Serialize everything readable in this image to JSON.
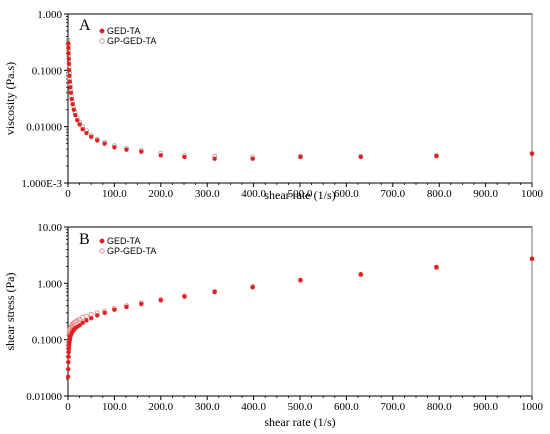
{
  "chart_data": [
    {
      "type": "scatter",
      "panel_label": "A",
      "xlabel": "shear rate (1/s)",
      "ylabel": "viscosity (Pa.s)",
      "x_scale": "linear",
      "y_scale": "log",
      "xlim": [
        0,
        1000
      ],
      "ylim": [
        0.001,
        1
      ],
      "x_ticks": [
        "0",
        "100.0",
        "200.0",
        "300.0",
        "400.0",
        "500.0",
        "600.0",
        "700.0",
        "800.0",
        "900.0",
        "1000"
      ],
      "y_ticks": [
        {
          "value": 0.001,
          "label": "1.000E-3"
        },
        {
          "value": 0.01,
          "label": "0.01000"
        },
        {
          "value": 0.1,
          "label": "0.1000"
        },
        {
          "value": 1,
          "label": "1.000"
        }
      ],
      "legend_position": "top-left",
      "series": [
        {
          "name": "GED-TA",
          "color": "#e41e1e",
          "marker": "filled-circle",
          "points": [
            [
              0.5,
              0.3
            ],
            [
              0.8,
              0.25
            ],
            [
              1.2,
              0.2
            ],
            [
              1.6,
              0.16
            ],
            [
              2.0,
              0.13
            ],
            [
              2.5,
              0.1
            ],
            [
              3.2,
              0.08
            ],
            [
              4.0,
              0.063
            ],
            [
              5.0,
              0.05
            ],
            [
              6.3,
              0.04
            ],
            [
              8.0,
              0.031
            ],
            [
              10,
              0.025
            ],
            [
              12.6,
              0.02
            ],
            [
              15.8,
              0.016
            ],
            [
              20,
              0.013
            ],
            [
              25,
              0.011
            ],
            [
              31.6,
              0.009
            ],
            [
              39.8,
              0.0077
            ],
            [
              50,
              0.0066
            ],
            [
              63,
              0.0057
            ],
            [
              79,
              0.005
            ],
            [
              100,
              0.0043
            ],
            [
              126,
              0.0039
            ],
            [
              158,
              0.0036
            ],
            [
              200,
              0.0031
            ],
            [
              251,
              0.0029
            ],
            [
              316,
              0.0027
            ],
            [
              398,
              0.0027
            ],
            [
              501,
              0.0029
            ],
            [
              631,
              0.0029
            ],
            [
              794,
              0.003
            ],
            [
              1000,
              0.0033
            ]
          ]
        },
        {
          "name": "GP-GED-TA",
          "color": "#aaaaaa",
          "marker": "open-circle",
          "points": [
            [
              0.5,
              0.35
            ],
            [
              0.8,
              0.28
            ],
            [
              1.2,
              0.22
            ],
            [
              1.6,
              0.18
            ],
            [
              2.0,
              0.14
            ],
            [
              2.5,
              0.11
            ],
            [
              3.2,
              0.09
            ],
            [
              4.0,
              0.07
            ],
            [
              5.0,
              0.055
            ],
            [
              6.3,
              0.044
            ],
            [
              8.0,
              0.035
            ],
            [
              10,
              0.028
            ],
            [
              12.6,
              0.022
            ],
            [
              15.8,
              0.018
            ],
            [
              20,
              0.014
            ],
            [
              25,
              0.012
            ],
            [
              31.6,
              0.01
            ],
            [
              39.8,
              0.0085
            ],
            [
              50,
              0.007
            ],
            [
              63,
              0.006
            ],
            [
              79,
              0.0053
            ],
            [
              100,
              0.0046
            ],
            [
              126,
              0.0041
            ],
            [
              158,
              0.0038
            ],
            [
              200,
              0.0034
            ],
            [
              251,
              0.0031
            ],
            [
              316,
              0.003
            ],
            [
              398,
              0.0029
            ],
            [
              501,
              0.003
            ],
            [
              631,
              0.003
            ],
            [
              794,
              0.0031
            ],
            [
              1000,
              0.0034
            ]
          ]
        }
      ]
    },
    {
      "type": "scatter",
      "panel_label": "B",
      "xlabel": "shear rate (1/s)",
      "ylabel": "shear stress (Pa)",
      "x_scale": "linear",
      "y_scale": "log",
      "xlim": [
        0,
        1000
      ],
      "ylim": [
        0.01,
        10
      ],
      "x_ticks": [
        "0",
        "100.0",
        "200.0",
        "300.0",
        "400.0",
        "500.0",
        "600.0",
        "700.0",
        "800.0",
        "900.0",
        "1000"
      ],
      "y_ticks": [
        {
          "value": 0.01,
          "label": "0.01000"
        },
        {
          "value": 0.1,
          "label": "0.1000"
        },
        {
          "value": 1,
          "label": "1.000"
        },
        {
          "value": 10,
          "label": "10.00"
        }
      ],
      "legend_position": "top-left",
      "series": [
        {
          "name": "GED-TA",
          "color": "#e41e1e",
          "marker": "filled-circle",
          "points": [
            [
              0.3,
              0.022
            ],
            [
              0.5,
              0.03
            ],
            [
              0.8,
              0.04
            ],
            [
              1.2,
              0.05
            ],
            [
              1.6,
              0.06
            ],
            [
              2.0,
              0.07
            ],
            [
              2.5,
              0.08
            ],
            [
              3.2,
              0.09
            ],
            [
              4.0,
              0.1
            ],
            [
              5.0,
              0.11
            ],
            [
              6.3,
              0.12
            ],
            [
              8.0,
              0.13
            ],
            [
              10,
              0.14
            ],
            [
              12.6,
              0.15
            ],
            [
              15.8,
              0.16
            ],
            [
              20,
              0.17
            ],
            [
              25,
              0.18
            ],
            [
              31.6,
              0.2
            ],
            [
              39.8,
              0.22
            ],
            [
              50,
              0.24
            ],
            [
              63,
              0.27
            ],
            [
              79,
              0.3
            ],
            [
              100,
              0.34
            ],
            [
              126,
              0.38
            ],
            [
              158,
              0.43
            ],
            [
              200,
              0.5
            ],
            [
              251,
              0.58
            ],
            [
              316,
              0.7
            ],
            [
              398,
              0.85
            ],
            [
              501,
              1.15
            ],
            [
              631,
              1.45
            ],
            [
              794,
              1.95
            ],
            [
              1000,
              2.75
            ]
          ]
        },
        {
          "name": "GP-GED-TA",
          "color": "#e88888",
          "marker": "open-circle",
          "points": [
            [
              0.5,
              0.05
            ],
            [
              0.8,
              0.07
            ],
            [
              1.2,
              0.09
            ],
            [
              1.6,
              0.1
            ],
            [
              2.0,
              0.12
            ],
            [
              2.5,
              0.13
            ],
            [
              3.2,
              0.14
            ],
            [
              4.0,
              0.15
            ],
            [
              5.0,
              0.16
            ],
            [
              6.3,
              0.17
            ],
            [
              8.0,
              0.18
            ],
            [
              10,
              0.19
            ],
            [
              12.6,
              0.2
            ],
            [
              15.8,
              0.21
            ],
            [
              20,
              0.22
            ],
            [
              25,
              0.23
            ],
            [
              31.6,
              0.25
            ],
            [
              39.8,
              0.26
            ],
            [
              50,
              0.28
            ],
            [
              63,
              0.3
            ],
            [
              79,
              0.32
            ],
            [
              100,
              0.36
            ],
            [
              126,
              0.4
            ],
            [
              158,
              0.45
            ],
            [
              200,
              0.52
            ],
            [
              251,
              0.6
            ],
            [
              316,
              0.72
            ],
            [
              398,
              0.88
            ],
            [
              501,
              1.12
            ],
            [
              631,
              1.42
            ],
            [
              794,
              1.9
            ],
            [
              1000,
              2.7
            ]
          ]
        }
      ]
    }
  ]
}
